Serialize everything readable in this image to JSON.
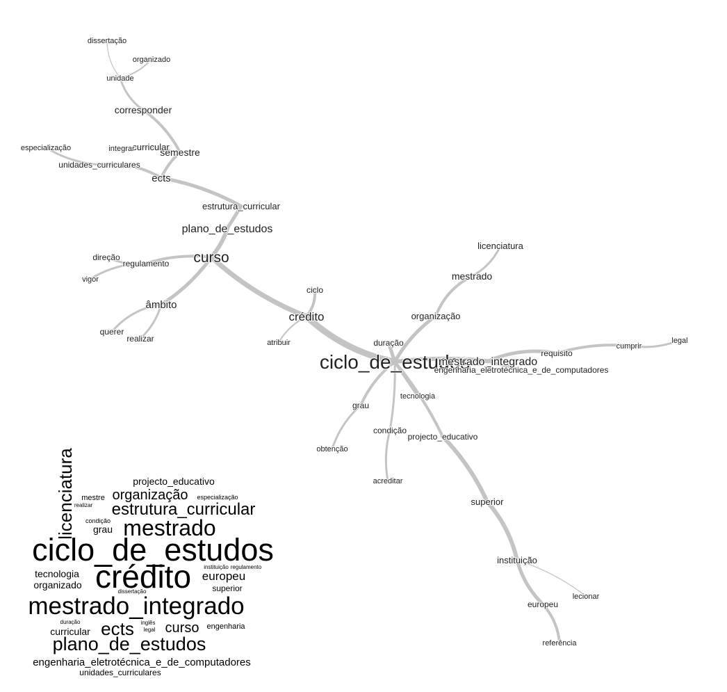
{
  "similarity_graph": {
    "nodes": [
      {
        "id": "ciclo_de_estudos",
        "label": "ciclo_de_estudos"
      },
      {
        "id": "curso",
        "label": "curso"
      },
      {
        "id": "credito",
        "label": "crédito"
      },
      {
        "id": "plano_de_estudos",
        "label": "plano_de_estudos"
      },
      {
        "id": "estrutura_curricular",
        "label": "estrutura_curricular"
      },
      {
        "id": "ects",
        "label": "ects"
      },
      {
        "id": "semestre",
        "label": "semestre"
      },
      {
        "id": "curricular",
        "label": "curricular"
      },
      {
        "id": "integrar",
        "label": "integrar"
      },
      {
        "id": "unidades_curriculares",
        "label": "unidades_curriculares"
      },
      {
        "id": "especializacao",
        "label": "especialização"
      },
      {
        "id": "corresponder",
        "label": "corresponder"
      },
      {
        "id": "unidade",
        "label": "unidade"
      },
      {
        "id": "organizado",
        "label": "organizado"
      },
      {
        "id": "dissertacao",
        "label": "dissertação"
      },
      {
        "id": "regulamento",
        "label": "regulamento"
      },
      {
        "id": "direcao",
        "label": "direção"
      },
      {
        "id": "vigor",
        "label": "vigor"
      },
      {
        "id": "ambito",
        "label": "âmbito"
      },
      {
        "id": "querer",
        "label": "querer"
      },
      {
        "id": "realizar",
        "label": "realizar"
      },
      {
        "id": "ciclo",
        "label": "ciclo"
      },
      {
        "id": "atribuir",
        "label": "atribuir"
      },
      {
        "id": "duracao",
        "label": "duração"
      },
      {
        "id": "organizacao",
        "label": "organização"
      },
      {
        "id": "mestrado",
        "label": "mestrado"
      },
      {
        "id": "licenciatura",
        "label": "licenciatura"
      },
      {
        "id": "mestrado_integrado",
        "label": "mestrado_integrado"
      },
      {
        "id": "engenharia_eletrotecnica",
        "label": "engenharia_eletrotécnica_e_de_computadores"
      },
      {
        "id": "requisito",
        "label": "requisito"
      },
      {
        "id": "cumprir",
        "label": "cumprir"
      },
      {
        "id": "legal",
        "label": "legal"
      },
      {
        "id": "tecnologia",
        "label": "tecnologia"
      },
      {
        "id": "grau",
        "label": "grau"
      },
      {
        "id": "obtencao",
        "label": "obtenção"
      },
      {
        "id": "condicao",
        "label": "condição"
      },
      {
        "id": "acreditar",
        "label": "acreditar"
      },
      {
        "id": "projecto_educativo",
        "label": "projecto_educativo"
      },
      {
        "id": "superior",
        "label": "superior"
      },
      {
        "id": "instituicao",
        "label": "instituição"
      },
      {
        "id": "lecionar",
        "label": "lecionar"
      },
      {
        "id": "europeu",
        "label": "europeu"
      },
      {
        "id": "referencia",
        "label": "referência"
      }
    ]
  },
  "word_cloud": {
    "words": [
      {
        "text": "ciclo_de_estudos"
      },
      {
        "text": "crédito"
      },
      {
        "text": "mestrado_integrado"
      },
      {
        "text": "plano_de_estudos"
      },
      {
        "text": "mestrado"
      },
      {
        "text": "licenciatura"
      },
      {
        "text": "estrutura_curricular"
      },
      {
        "text": "organização"
      },
      {
        "text": "ects"
      },
      {
        "text": "curso"
      },
      {
        "text": "europeu"
      },
      {
        "text": "projecto_educativo"
      },
      {
        "text": "engenharia_eletrotécnica_e_de_computadores"
      },
      {
        "text": "tecnologia"
      },
      {
        "text": "organizado"
      },
      {
        "text": "curricular"
      },
      {
        "text": "grau"
      },
      {
        "text": "superior"
      },
      {
        "text": "mestre"
      },
      {
        "text": "engenharia"
      },
      {
        "text": "unidades_curriculares"
      },
      {
        "text": "especialização"
      },
      {
        "text": "realizar"
      },
      {
        "text": "condição"
      },
      {
        "text": "instituição"
      },
      {
        "text": "regulamento"
      },
      {
        "text": "dissertação"
      },
      {
        "text": "duração"
      },
      {
        "text": "inglês"
      },
      {
        "text": "legal"
      }
    ]
  }
}
